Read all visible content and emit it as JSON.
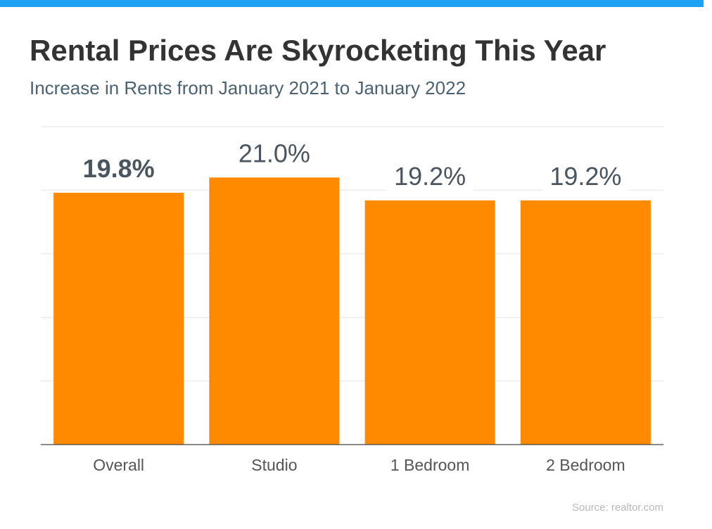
{
  "header": {
    "title": "Rental Prices Are Skyrocketing This Year",
    "subtitle": "Increase in Rents from January 2021 to January 2022"
  },
  "footer": {
    "source": "Source: realtor.com"
  },
  "colors": {
    "bar": "#ff8a00",
    "top_bar": "#1da1f2",
    "grid": "#e6e6e6",
    "axis": "#444444"
  },
  "chart_data": {
    "type": "bar",
    "title": "Rental Prices Are Skyrocketing This Year",
    "subtitle": "Increase in Rents from January 2021 to January 2022",
    "categories": [
      "Overall",
      "Studio",
      "1 Bedroom",
      "2 Bedroom"
    ],
    "values": [
      19.8,
      21.0,
      19.2,
      19.2
    ],
    "value_labels": [
      "19.8%",
      "21.0%",
      "19.2%",
      "19.2%"
    ],
    "highlighted_label": "Overall",
    "ylim": [
      0,
      25
    ],
    "gridlines": [
      0,
      5,
      10,
      15,
      20,
      25
    ],
    "grid": true,
    "legend": "none",
    "xlabel": "",
    "ylabel": ""
  }
}
